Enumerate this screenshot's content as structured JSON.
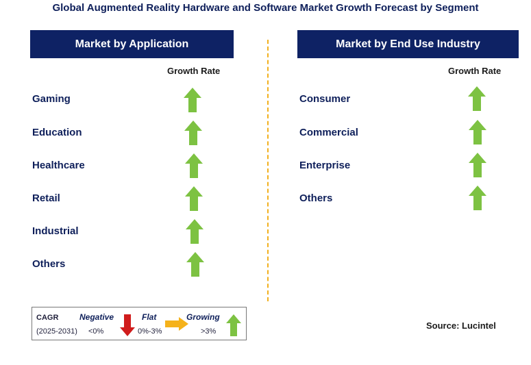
{
  "title": "Global Augmented Reality Hardware and Software Market Growth Forecast by Segment",
  "left_panel": {
    "header": "Market by Application",
    "growth_label": "Growth Rate",
    "rows": [
      {
        "label": "Gaming",
        "trend": "growing"
      },
      {
        "label": "Education",
        "trend": "growing"
      },
      {
        "label": "Healthcare",
        "trend": "growing"
      },
      {
        "label": "Retail",
        "trend": "growing"
      },
      {
        "label": "Industrial",
        "trend": "growing"
      },
      {
        "label": "Others",
        "trend": "growing"
      }
    ]
  },
  "right_panel": {
    "header": "Market by End Use Industry",
    "growth_label": "Growth Rate",
    "rows": [
      {
        "label": "Consumer",
        "trend": "growing"
      },
      {
        "label": "Commercial",
        "trend": "growing"
      },
      {
        "label": "Enterprise",
        "trend": "growing"
      },
      {
        "label": "Others",
        "trend": "growing"
      }
    ]
  },
  "legend": {
    "cagr": "CAGR",
    "period": "(2025-2031)",
    "negative": "Negative",
    "negative_range": "<0%",
    "flat": "Flat",
    "flat_range": "0%-3%",
    "growing": "Growing",
    "growing_range": ">3%"
  },
  "source": "Source: Lucintel",
  "colors": {
    "header_bg": "#0e2264",
    "up_arrow": "#7dc242",
    "down_arrow": "#d01c1c",
    "flat_arrow": "#f5b21b",
    "divider": "#f2b01e"
  }
}
